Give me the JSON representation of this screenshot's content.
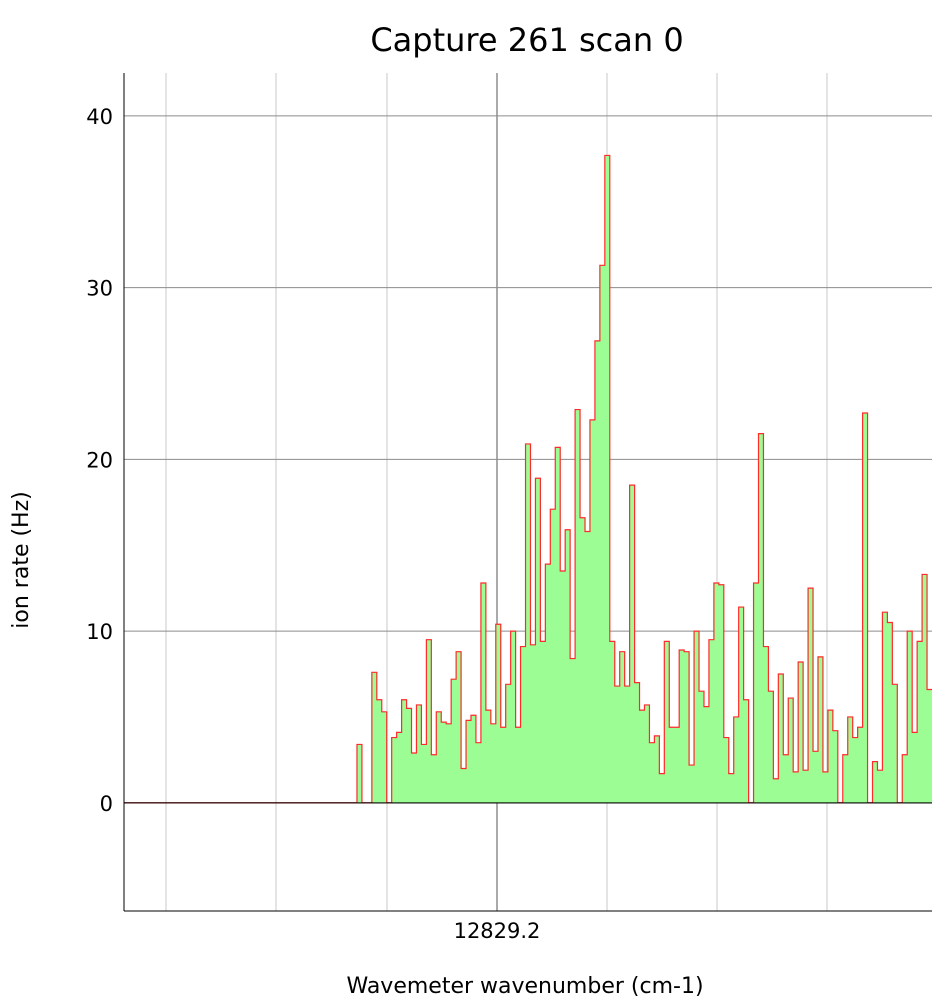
{
  "chart_data": {
    "type": "area",
    "title": "Capture 261 scan 0",
    "xlabel": "Wavemeter wavenumber (cm-1)",
    "ylabel": "ion rate (Hz)",
    "x_tick_labels": [
      "12829.2"
    ],
    "y_ticks": [
      0,
      10,
      20,
      30,
      40
    ],
    "ylim": [
      -6.3,
      42.5
    ],
    "grid": true,
    "colors": {
      "fill": "#9dfd95",
      "stroke": "#ff2a2a",
      "grid": "#c8c8c8",
      "major_grid": "#555555",
      "axis": "#000000"
    },
    "series": [
      {
        "values": [
          0,
          0,
          0,
          0,
          0,
          0,
          0,
          0,
          0,
          0,
          0,
          0,
          0,
          0,
          0,
          0,
          0,
          0,
          0,
          0,
          0,
          0,
          0,
          0,
          0,
          0,
          0,
          0,
          0,
          0,
          0,
          0,
          0,
          0,
          0,
          0,
          0,
          0,
          0,
          0,
          0,
          0,
          0,
          0,
          0,
          0,
          0,
          3.4,
          0,
          0,
          7.6,
          6.0,
          5.3,
          0,
          3.8,
          4.1,
          6.0,
          5.5,
          2.9,
          5.7,
          3.4,
          9.5,
          2.8,
          5.3,
          4.7,
          4.6,
          7.2,
          8.8,
          2.0,
          4.8,
          5.1,
          3.5,
          12.8,
          5.4,
          4.6,
          10.4,
          4.4,
          6.9,
          10.0,
          4.4,
          9.1,
          20.9,
          9.2,
          18.9,
          9.4,
          13.9,
          17.1,
          20.7,
          13.5,
          15.9,
          8.4,
          22.9,
          16.6,
          15.8,
          22.3,
          26.9,
          31.3,
          37.7,
          9.4,
          6.8,
          8.8,
          6.8,
          18.5,
          7.0,
          5.4,
          5.7,
          3.5,
          3.9,
          1.7,
          9.4,
          4.4,
          4.4,
          8.9,
          8.8,
          2.2,
          10.0,
          6.5,
          5.6,
          9.5,
          12.8,
          12.7,
          3.8,
          1.7,
          5.0,
          11.4,
          6.0,
          0,
          12.8,
          21.5,
          9.1,
          6.5,
          1.4,
          7.5,
          2.8,
          6.1,
          1.8,
          8.2,
          1.9,
          12.5,
          3.0,
          8.5,
          1.8,
          5.4,
          4.2,
          0,
          2.8,
          5.0,
          3.8,
          4.4,
          22.7,
          0,
          2.4,
          1.9,
          11.1,
          10.5,
          6.9,
          0,
          2.8,
          10.0,
          4.1,
          9.4,
          13.3,
          6.6
        ]
      }
    ]
  }
}
